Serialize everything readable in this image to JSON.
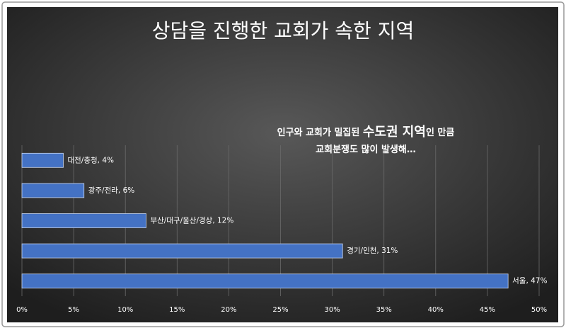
{
  "chart_data": {
    "type": "hbar",
    "title": "상담을 진행한 교회가 속한 지역",
    "annotation": [
      [
        "인구와 교회가 밀집된 ",
        "수도권 지역",
        "인 만큼"
      ],
      [
        "교회분쟁도 많이 발생해…"
      ]
    ],
    "values": [
      4,
      6,
      12,
      31,
      47
    ],
    "value_labels": [
      "대전/충청, 4%",
      "광주/전라, 6%",
      "부산/대구/울산/경상, 12%",
      "경기/인천, 31%",
      "서울, 47%"
    ],
    "color": "#4472c4",
    "xlim": [
      0,
      50
    ],
    "xticks": [
      {
        "value": 0,
        "label": "0%"
      },
      {
        "value": 5,
        "label": "5%"
      },
      {
        "value": 10,
        "label": "10%"
      },
      {
        "value": 15,
        "label": "15%"
      },
      {
        "value": 20,
        "label": "20%"
      },
      {
        "value": 25,
        "label": "25%"
      },
      {
        "value": 30,
        "label": "30%"
      },
      {
        "value": 35,
        "label": "35%"
      },
      {
        "value": 40,
        "label": "40%"
      },
      {
        "value": 45,
        "label": "45%"
      },
      {
        "value": 50,
        "label": "50%"
      }
    ],
    "grid": true
  }
}
